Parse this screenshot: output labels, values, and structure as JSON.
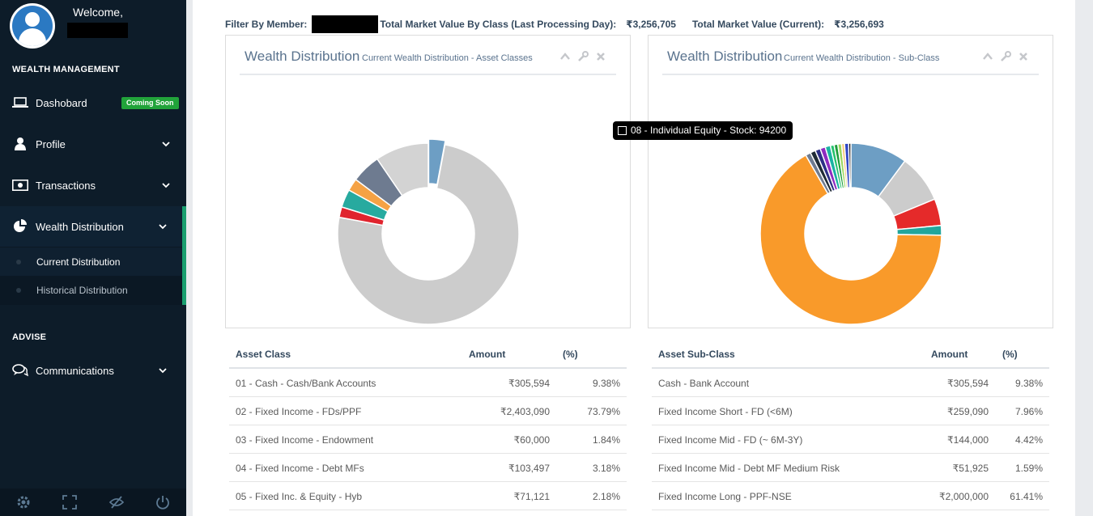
{
  "sidebar": {
    "welcome": "Welcome,",
    "sections": {
      "wealth": "WEALTH MANAGEMENT",
      "advise": "ADVISE"
    },
    "items": {
      "dashboard": "Dashobard",
      "coming_soon": "Coming Soon",
      "profile": "Profile",
      "transactions": "Transactions",
      "wealth": "Wealth Distribution",
      "current": "Current Distribution",
      "historical": "Historical Distribution",
      "communications": "Communications"
    },
    "footer_icons": [
      "gear-icon",
      "fullscreen-icon",
      "eye-slash-icon",
      "power-icon"
    ]
  },
  "filter": {
    "member_label": "Filter By Member:",
    "class_label": "Total Market Value By Class (Last Processing Day):",
    "class_value": "₹3,256,705",
    "current_label": "Total Market Value (Current):",
    "current_value": "₹3,256,693"
  },
  "panels": {
    "left": {
      "title": "Wealth Distribution",
      "subtitle": "Current Wealth Distribution - Asset Classes"
    },
    "right": {
      "title": "Wealth Distribution",
      "subtitle": "Current Wealth Distribution - Sub-Class"
    }
  },
  "tooltip": "08 - Individual Equity - Stock: 94200",
  "colors": {
    "accent": "#1a9f6f",
    "sidebar": "#0d1c29",
    "badge": "#21a33a"
  },
  "chart_data": [
    {
      "type": "pie",
      "variant": "doughnut",
      "slices": [
        {
          "value": 94200,
          "color": "#6d9ec4"
        },
        {
          "value": 2403090,
          "color": "#cccccc"
        },
        {
          "value": 60000,
          "color": "#e0242e"
        },
        {
          "value": 103497,
          "color": "#27aa9f"
        },
        {
          "value": 71121,
          "color": "#f5a244"
        },
        {
          "value": 168000,
          "color": "#6e7b90"
        },
        {
          "value": 305594,
          "color": "#d3d3d3"
        }
      ]
    },
    {
      "type": "pie",
      "variant": "doughnut",
      "slices": [
        {
          "value": 305594,
          "color": "#6d9ec4"
        },
        {
          "value": 259090,
          "color": "#cccccc"
        },
        {
          "value": 144000,
          "color": "#e52a2a"
        },
        {
          "value": 51925,
          "color": "#22a69c"
        },
        {
          "value": 2000000,
          "color": "#f99a2a"
        },
        {
          "value": 28000,
          "color": "#6e7b90"
        },
        {
          "value": 28000,
          "color": "#1f2b36"
        },
        {
          "value": 28000,
          "color": "#2c2f86"
        },
        {
          "value": 28000,
          "color": "#8e2cc0"
        },
        {
          "value": 28000,
          "color": "#1ab3a3"
        },
        {
          "value": 20000,
          "color": "#25c26d"
        },
        {
          "value": 20000,
          "color": "#1d9c3a"
        },
        {
          "value": 20000,
          "color": "#9bd860"
        },
        {
          "value": 16000,
          "color": "#f5c87a"
        },
        {
          "value": 22000,
          "color": "#2f46c7"
        },
        {
          "value": 12000,
          "color": "#0d0d0d"
        }
      ]
    }
  ],
  "tables": {
    "left": {
      "headers": [
        "Asset Class",
        "Amount",
        "(%)"
      ],
      "rows": [
        [
          "01 - Cash - Cash/Bank Accounts",
          "₹305,594",
          "9.38%"
        ],
        [
          "02 - Fixed Income - FDs/PPF",
          "₹2,403,090",
          "73.79%"
        ],
        [
          "03 - Fixed Income - Endowment",
          "₹60,000",
          "1.84%"
        ],
        [
          "04 - Fixed Income - Debt MFs",
          "₹103,497",
          "3.18%"
        ],
        [
          "05 - Fixed Inc. & Equity - Hyb",
          "₹71,121",
          "2.18%"
        ]
      ]
    },
    "right": {
      "headers": [
        "Asset Sub-Class",
        "Amount",
        "(%)"
      ],
      "rows": [
        [
          "Cash - Bank Account",
          "₹305,594",
          "9.38%"
        ],
        [
          "Fixed Income Short - FD (<6M)",
          "₹259,090",
          "7.96%"
        ],
        [
          "Fixed Income Mid - FD (~ 6M-3Y)",
          "₹144,000",
          "4.42%"
        ],
        [
          "Fixed Income Mid - Debt MF Medium Risk",
          "₹51,925",
          "1.59%"
        ],
        [
          "Fixed Income Long - PPF-NSE",
          "₹2,000,000",
          "61.41%"
        ]
      ]
    }
  }
}
